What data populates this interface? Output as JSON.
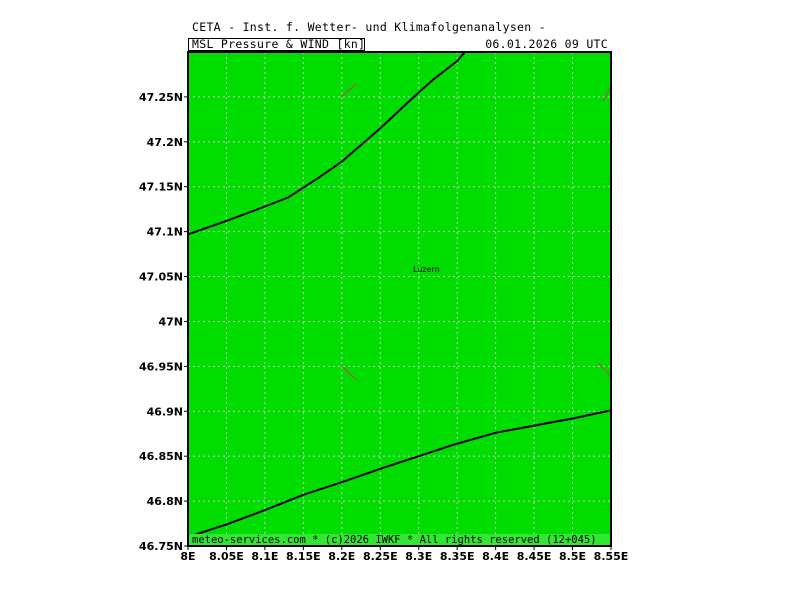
{
  "header": {
    "title": "CETA - Inst. f. Wetter- und Klimafolgenanalysen -",
    "variable": "MSL_Pressure_&_WIND [kn]",
    "datetime": "06.01.2026 09 UTC"
  },
  "footer": {
    "credit": "meteo-services.com * (c)2026 IWKF * All rights reserved (12+045)"
  },
  "map": {
    "lon_range": [
      8.0,
      8.55
    ],
    "lat_range": [
      46.75,
      47.3
    ],
    "land_color": "#00dd00",
    "grid_color": "#c8c8c8",
    "footer_band_color": "#33e633",
    "x_ticks": [
      {
        "value": 8.0,
        "label": "8E"
      },
      {
        "value": 8.05,
        "label": "8.05E"
      },
      {
        "value": 8.1,
        "label": "8.1E"
      },
      {
        "value": 8.15,
        "label": "8.15E"
      },
      {
        "value": 8.2,
        "label": "8.2E"
      },
      {
        "value": 8.25,
        "label": "8.25E"
      },
      {
        "value": 8.3,
        "label": "8.3E"
      },
      {
        "value": 8.35,
        "label": "8.35E"
      },
      {
        "value": 8.4,
        "label": "8.4E"
      },
      {
        "value": 8.45,
        "label": "8.45E"
      },
      {
        "value": 8.5,
        "label": "8.5E"
      },
      {
        "value": 8.55,
        "label": "8.55E"
      }
    ],
    "y_ticks": [
      {
        "value": 46.75,
        "label": "46.75N"
      },
      {
        "value": 46.8,
        "label": "46.8N"
      },
      {
        "value": 46.85,
        "label": "46.85N"
      },
      {
        "value": 46.9,
        "label": "46.9N"
      },
      {
        "value": 46.95,
        "label": "46.95N"
      },
      {
        "value": 47.0,
        "label": "47N"
      },
      {
        "value": 47.05,
        "label": "47.05N"
      },
      {
        "value": 47.1,
        "label": "47.1N"
      },
      {
        "value": 47.15,
        "label": "47.15N"
      },
      {
        "value": 47.2,
        "label": "47.2N"
      },
      {
        "value": 47.25,
        "label": "47.25N"
      }
    ],
    "cities": [
      {
        "name": "Luzern",
        "lon": 8.31,
        "lat": 47.055
      }
    ],
    "isobars": [
      {
        "points": [
          [
            8.0,
            47.097
          ],
          [
            8.05,
            47.112
          ],
          [
            8.1,
            47.128
          ],
          [
            8.13,
            47.138
          ],
          [
            8.17,
            47.16
          ],
          [
            8.2,
            47.178
          ],
          [
            8.25,
            47.215
          ],
          [
            8.3,
            47.255
          ],
          [
            8.32,
            47.27
          ],
          [
            8.35,
            47.29
          ],
          [
            8.36,
            47.3
          ]
        ]
      },
      {
        "points": [
          [
            8.0,
            46.76
          ],
          [
            8.05,
            46.774
          ],
          [
            8.1,
            46.79
          ],
          [
            8.15,
            46.807
          ],
          [
            8.2,
            46.821
          ],
          [
            8.25,
            46.836
          ],
          [
            8.3,
            46.85
          ],
          [
            8.35,
            46.864
          ],
          [
            8.4,
            46.876
          ],
          [
            8.45,
            46.884
          ],
          [
            8.5,
            46.892
          ],
          [
            8.55,
            46.901
          ]
        ]
      }
    ],
    "wind_barbs": [
      {
        "lon": 8.2,
        "lat": 47.25
      },
      {
        "lon": 8.55,
        "lat": 47.25
      },
      {
        "lon": 8.2,
        "lat": 46.95
      },
      {
        "lon": 8.55,
        "lat": 46.95
      }
    ]
  }
}
